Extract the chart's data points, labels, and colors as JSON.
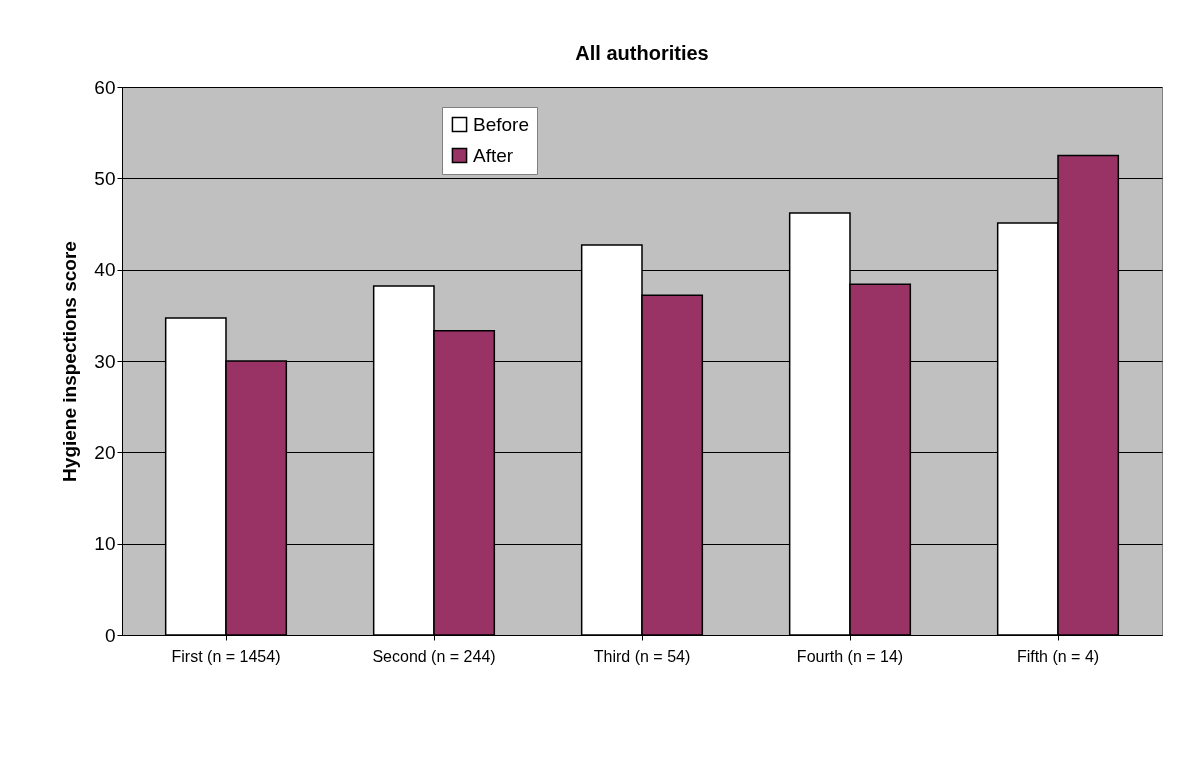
{
  "chart_data": {
    "type": "bar",
    "title": "All authorities",
    "ylabel": "Hygiene inspections score",
    "categories": [
      "First (n  = 1454)",
      "Second (n = 244)",
      "Third (n = 54)",
      "Fourth (n = 14)",
      "Fifth (n = 4)"
    ],
    "series": [
      {
        "name": "Before",
        "color": "#ffffff",
        "values": [
          34.7,
          38.2,
          42.7,
          46.2,
          45.1
        ]
      },
      {
        "name": "After",
        "color": "#993366",
        "values": [
          30.0,
          33.3,
          37.2,
          38.4,
          52.5
        ]
      }
    ],
    "ylim": [
      0,
      60
    ],
    "yticks": [
      0,
      10,
      20,
      30,
      40,
      50,
      60
    ],
    "grid": "y",
    "legend": "top"
  }
}
